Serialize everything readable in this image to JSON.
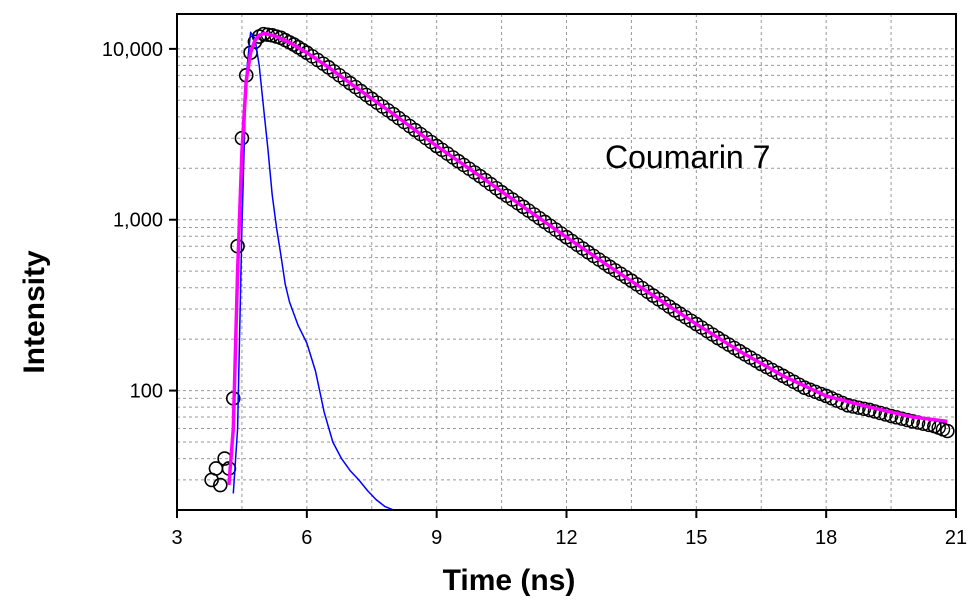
{
  "chart_data": {
    "type": "scatter",
    "title": "",
    "xlabel": "Time (ns)",
    "ylabel": "Intensity",
    "xscale": "linear",
    "yscale": "log",
    "xlim": [
      3,
      21
    ],
    "ylim": [
      20,
      16000
    ],
    "xticks": [
      3,
      6,
      9,
      12,
      15,
      18,
      21
    ],
    "xtick_labels": [
      "3",
      "6",
      "9",
      "12",
      "15",
      "18",
      "21"
    ],
    "yticks": [
      100,
      1000,
      10000
    ],
    "ytick_labels": [
      "100",
      "1,000",
      "10,000"
    ],
    "grid": true,
    "legend": "none",
    "annotation": "Coumarin 7",
    "series": [
      {
        "role": "measured decay",
        "style": "open circles",
        "color": "#000000",
        "x": [
          3.8,
          3.9,
          4.0,
          4.1,
          4.2,
          4.3,
          4.4,
          4.5,
          4.6,
          4.7,
          4.8,
          4.9,
          5.0,
          5.2,
          5.4,
          5.7,
          6.0,
          6.5,
          7.0,
          7.5,
          8.0,
          8.5,
          9.0,
          9.5,
          10.0,
          10.5,
          11.0,
          11.5,
          12.0,
          12.5,
          13.0,
          13.5,
          14.0,
          14.5,
          15.0,
          15.5,
          16.0,
          16.5,
          17.0,
          17.5,
          18.0,
          18.5,
          19.0,
          19.5,
          20.0,
          20.5,
          20.8
        ],
        "y": [
          30,
          35,
          28,
          40,
          35,
          90,
          700,
          3000,
          7000,
          9500,
          11000,
          11800,
          12200,
          12000,
          11600,
          10600,
          9500,
          7800,
          6300,
          5100,
          4150,
          3350,
          2700,
          2200,
          1800,
          1450,
          1190,
          970,
          790,
          645,
          530,
          440,
          360,
          295,
          245,
          203,
          170,
          143,
          122,
          104,
          93,
          82,
          77,
          71,
          66,
          62,
          58
        ]
      },
      {
        "role": "instrument response",
        "style": "line",
        "color": "#0000ff",
        "x": [
          4.3,
          4.4,
          4.5,
          4.6,
          4.7,
          4.8,
          4.9,
          5.0,
          5.1,
          5.2,
          5.3,
          5.4,
          5.5,
          5.6,
          5.8,
          6.0,
          6.2,
          6.4,
          6.6,
          6.8,
          7.0,
          7.2,
          7.4,
          7.6,
          7.8,
          8.0,
          8.2
        ],
        "y": [
          25,
          60,
          900,
          7000,
          12500,
          11500,
          8000,
          4500,
          2600,
          1400,
          900,
          620,
          420,
          330,
          240,
          190,
          130,
          75,
          50,
          40,
          34,
          30,
          26,
          23,
          21,
          20,
          20
        ]
      },
      {
        "role": "fit",
        "style": "line",
        "color": "#ff00ff",
        "x": [
          4.2,
          4.3,
          4.4,
          4.5,
          4.6,
          4.7,
          4.8,
          4.9,
          5.0,
          5.1,
          5.3,
          5.6,
          6.0,
          6.5,
          7.0,
          8.0,
          9.0,
          10.0,
          11.0,
          12.0,
          13.0,
          14.0,
          15.0,
          16.0,
          17.0,
          18.0,
          19.0,
          20.0,
          20.8
        ],
        "y": [
          28,
          60,
          500,
          2500,
          6500,
          9500,
          11200,
          12000,
          12300,
          12200,
          11800,
          10900,
          9500,
          7800,
          6300,
          4150,
          2700,
          1800,
          1190,
          790,
          530,
          360,
          245,
          170,
          122,
          93,
          80,
          70,
          66
        ]
      }
    ]
  }
}
